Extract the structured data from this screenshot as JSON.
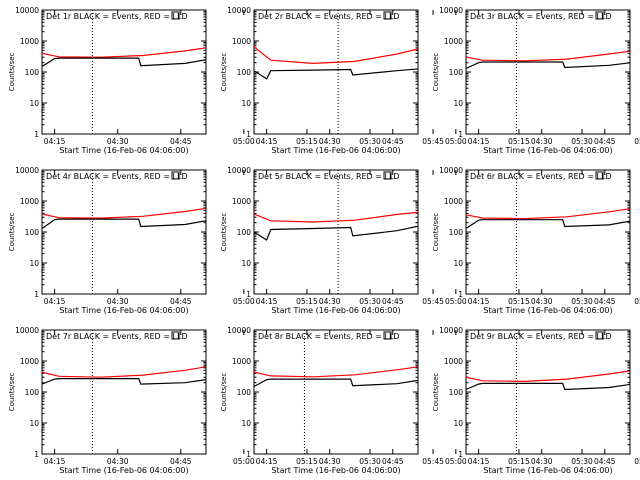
{
  "colors": {
    "events": "#000000",
    "lld": "#ff0000",
    "axes": "#000000",
    "background": "#ffffff"
  },
  "chart_data": [
    {
      "type": "line",
      "title": "Det 1r BLACK = Events, RED = LLD",
      "xlabel": "Start Time (16-Feb-06 04:06:00)",
      "ylabel": "Counts/sec",
      "xlim_min": [
        6,
        45
      ],
      "ylim": [
        1,
        10000
      ],
      "yscale": "log",
      "xticks_min": [
        9,
        24,
        39,
        54,
        69,
        84,
        99
      ],
      "xtick_labels": [
        "04:15",
        "04:30",
        "04:45",
        "05:00",
        "05:15",
        "05:30",
        "05:45"
      ],
      "yticks": [
        1,
        10,
        100,
        1000,
        10000
      ],
      "ytick_labels": [
        "1",
        "10",
        "100",
        "1000",
        "10000"
      ],
      "dotted_lines_min": [
        18,
        89,
        103
      ],
      "grid": false,
      "series": [
        {
          "name": "LLD",
          "x": [
            6,
            10,
            20,
            30,
            40,
            45,
            50,
            60,
            70,
            80,
            90,
            97,
            104
          ],
          "y": [
            400,
            310,
            300,
            340,
            480,
            600,
            650,
            520,
            380,
            300,
            320,
            460,
            650
          ]
        },
        {
          "name": "Events",
          "x": [
            6,
            9,
            10,
            20,
            29,
            29.5,
            40,
            49,
            50,
            60,
            70,
            71,
            80,
            84.5,
            85,
            90,
            97,
            104
          ],
          "y": [
            150,
            270,
            280,
            280,
            280,
            160,
            190,
            310,
            270,
            280,
            280,
            260,
            260,
            260,
            100,
            130,
            170,
            260
          ]
        }
      ]
    },
    {
      "type": "line",
      "title": "Det 2r BLACK = Events, RED = LLD",
      "xlabel": "Start Time (16-Feb-06 04:06:00)",
      "ylabel": "Counts/sec",
      "xlim_min": [
        6,
        45
      ],
      "ylim": [
        1,
        10000
      ],
      "yscale": "log",
      "xticks_min": [
        9,
        24,
        39,
        54,
        69,
        84,
        99
      ],
      "xtick_labels": [
        "04:15",
        "04:30",
        "04:45",
        "05:00",
        "05:15",
        "05:30",
        "05:45"
      ],
      "yticks": [
        1,
        10,
        100,
        1000,
        10000
      ],
      "ytick_labels": [
        "1",
        "10",
        "100",
        "1000",
        "10000"
      ],
      "dotted_lines_min": [
        26,
        89,
        103
      ],
      "grid": false,
      "series": [
        {
          "name": "LLD",
          "x": [
            6,
            10,
            20,
            30,
            40,
            50,
            55,
            60,
            70,
            80,
            90,
            97,
            104
          ],
          "y": [
            650,
            240,
            190,
            220,
            380,
            800,
            900,
            700,
            350,
            220,
            240,
            400,
            700
          ]
        },
        {
          "name": "Events",
          "x": [
            6,
            9,
            10,
            20,
            29,
            29.5,
            40,
            49,
            50,
            60,
            70,
            71,
            80,
            84.5,
            85,
            90,
            97,
            104
          ],
          "y": [
            110,
            60,
            110,
            115,
            120,
            80,
            110,
            140,
            110,
            115,
            120,
            115,
            110,
            115,
            50,
            80,
            200,
            400
          ]
        }
      ]
    },
    {
      "type": "line",
      "title": "Det 3r BLACK = Events, RED = LLD",
      "xlabel": "Start Time (16-Feb-06 04:06:00)",
      "ylabel": "Counts/sec",
      "xlim_min": [
        6,
        45
      ],
      "ylim": [
        1,
        10000
      ],
      "yscale": "log",
      "xticks_min": [
        9,
        24,
        39,
        54,
        69,
        84,
        99
      ],
      "xtick_labels": [
        "04:15",
        "04:30",
        "04:45",
        "05:00",
        "05:15",
        "05:30",
        "05:45"
      ],
      "yticks": [
        1,
        10,
        100,
        1000,
        10000
      ],
      "ytick_labels": [
        "1",
        "10",
        "100",
        "1000",
        "10000"
      ],
      "dotted_lines_min": [
        18,
        89,
        103
      ],
      "grid": false,
      "series": [
        {
          "name": "LLD",
          "x": [
            6,
            10,
            20,
            30,
            40,
            45,
            50,
            60,
            70,
            80,
            90,
            97,
            104
          ],
          "y": [
            300,
            240,
            230,
            260,
            380,
            470,
            500,
            400,
            290,
            230,
            240,
            380,
            550
          ]
        },
        {
          "name": "Events",
          "x": [
            6,
            9,
            10,
            20,
            29,
            29.5,
            40,
            49,
            50,
            60,
            70,
            71,
            80,
            84.5,
            85,
            90,
            97,
            104
          ],
          "y": [
            130,
            200,
            210,
            210,
            210,
            140,
            165,
            230,
            200,
            210,
            210,
            200,
            190,
            200,
            90,
            110,
            140,
            210
          ]
        }
      ]
    },
    {
      "type": "line",
      "title": "Det 4r BLACK = Events, RED = LLD",
      "xlabel": "Start Time (16-Feb-06 04:06:00)",
      "ylabel": "Counts/sec",
      "xlim_min": [
        6,
        45
      ],
      "ylim": [
        1,
        10000
      ],
      "yscale": "log",
      "xticks_min": [
        9,
        24,
        39,
        54,
        69,
        84,
        99
      ],
      "xtick_labels": [
        "04:15",
        "04:30",
        "04:45",
        "05:00",
        "05:15",
        "05:30",
        "05:45"
      ],
      "yticks": [
        1,
        10,
        100,
        1000,
        10000
      ],
      "ytick_labels": [
        "1",
        "10",
        "100",
        "1000",
        "10000"
      ],
      "dotted_lines_min": [
        18,
        89,
        103
      ],
      "grid": false,
      "series": [
        {
          "name": "LLD",
          "x": [
            6,
            10,
            20,
            30,
            40,
            45,
            50,
            60,
            70,
            80,
            90,
            97,
            104
          ],
          "y": [
            380,
            290,
            280,
            320,
            460,
            580,
            620,
            500,
            360,
            280,
            300,
            440,
            620
          ]
        },
        {
          "name": "Events",
          "x": [
            6,
            9,
            10,
            20,
            29,
            29.5,
            40,
            49,
            50,
            60,
            70,
            71,
            80,
            84.5,
            85,
            90,
            97,
            104
          ],
          "y": [
            130,
            250,
            260,
            260,
            260,
            150,
            175,
            290,
            250,
            260,
            260,
            240,
            240,
            240,
            95,
            120,
            160,
            240
          ]
        }
      ]
    },
    {
      "type": "line",
      "title": "Det 5r BLACK = Events, RED = LLD",
      "xlabel": "Start Time (16-Feb-06 04:06:00)",
      "ylabel": "Counts/sec",
      "xlim_min": [
        6,
        45
      ],
      "ylim": [
        1,
        10000
      ],
      "yscale": "log",
      "xticks_min": [
        9,
        24,
        39,
        54,
        69,
        84,
        99
      ],
      "xtick_labels": [
        "04:15",
        "04:30",
        "04:45",
        "05:00",
        "05:15",
        "05:30",
        "05:45"
      ],
      "yticks": [
        1,
        10,
        100,
        1000,
        10000
      ],
      "ytick_labels": [
        "1",
        "10",
        "100",
        "1000",
        "10000"
      ],
      "dotted_lines_min": [
        26,
        89,
        103
      ],
      "grid": false,
      "series": [
        {
          "name": "LLD",
          "x": [
            6,
            10,
            20,
            30,
            40,
            50,
            55,
            60,
            70,
            80,
            90,
            97,
            104
          ],
          "y": [
            380,
            230,
            210,
            240,
            370,
            500,
            550,
            450,
            300,
            200,
            210,
            350,
            450
          ]
        },
        {
          "name": "Events",
          "x": [
            6,
            9,
            10,
            20,
            29,
            29.5,
            40,
            49,
            50,
            60,
            70,
            71,
            80,
            84.5,
            85,
            90,
            97,
            104
          ],
          "y": [
            100,
            55,
            120,
            130,
            140,
            75,
            110,
            200,
            130,
            140,
            150,
            140,
            130,
            140,
            45,
            75,
            110,
            160
          ]
        }
      ]
    },
    {
      "type": "line",
      "title": "Det 6r BLACK = Events, RED = LLD",
      "xlabel": "Start Time (16-Feb-06 04:06:00)",
      "ylabel": "Counts/sec",
      "xlim_min": [
        6,
        45
      ],
      "ylim": [
        1,
        10000
      ],
      "yscale": "log",
      "xticks_min": [
        9,
        24,
        39,
        54,
        69,
        84,
        99
      ],
      "xtick_labels": [
        "04:15",
        "04:30",
        "04:45",
        "05:00",
        "05:15",
        "05:30",
        "05:45"
      ],
      "yticks": [
        1,
        10,
        100,
        1000,
        10000
      ],
      "ytick_labels": [
        "1",
        "10",
        "100",
        "1000",
        "10000"
      ],
      "dotted_lines_min": [
        18,
        89,
        103
      ],
      "grid": false,
      "series": [
        {
          "name": "LLD",
          "x": [
            6,
            10,
            20,
            30,
            40,
            45,
            50,
            60,
            70,
            80,
            90,
            97,
            104
          ],
          "y": [
            360,
            280,
            270,
            310,
            450,
            560,
            600,
            490,
            350,
            270,
            290,
            430,
            600
          ]
        },
        {
          "name": "Events",
          "x": [
            6,
            9,
            10,
            20,
            29,
            29.5,
            40,
            49,
            50,
            60,
            70,
            71,
            80,
            84.5,
            85,
            90,
            97,
            104
          ],
          "y": [
            130,
            240,
            250,
            250,
            250,
            150,
            170,
            280,
            240,
            250,
            250,
            230,
            230,
            230,
            95,
            115,
            150,
            230
          ]
        }
      ]
    },
    {
      "type": "line",
      "title": "Det 7r BLACK = Events, RED = LLD",
      "xlabel": "Start Time (16-Feb-06 04:06:00)",
      "ylabel": "Counts/sec",
      "xlim_min": [
        6,
        45
      ],
      "ylim": [
        1,
        10000
      ],
      "yscale": "log",
      "xticks_min": [
        9,
        24,
        39,
        54,
        69,
        84,
        99
      ],
      "xtick_labels": [
        "04:15",
        "04:30",
        "04:45",
        "05:00",
        "05:15",
        "05:30",
        "05:45"
      ],
      "yticks": [
        1,
        10,
        100,
        1000,
        10000
      ],
      "ytick_labels": [
        "1",
        "10",
        "100",
        "1000",
        "10000"
      ],
      "dotted_lines_min": [
        18,
        89,
        103
      ],
      "grid": false,
      "series": [
        {
          "name": "LLD",
          "x": [
            6,
            10,
            20,
            30,
            40,
            45,
            50,
            60,
            70,
            80,
            90,
            97,
            104
          ],
          "y": [
            440,
            320,
            300,
            350,
            500,
            650,
            700,
            560,
            400,
            300,
            320,
            480,
            700
          ]
        },
        {
          "name": "Events",
          "x": [
            6,
            9,
            10,
            20,
            29,
            29.5,
            40,
            49,
            50,
            60,
            70,
            71,
            80,
            84.5,
            85,
            90,
            97,
            104
          ],
          "y": [
            180,
            260,
            270,
            270,
            270,
            180,
            200,
            300,
            270,
            270,
            270,
            260,
            260,
            260,
            120,
            150,
            200,
            300
          ]
        }
      ]
    },
    {
      "type": "line",
      "title": "Det 8r BLACK = Events, RED = LLD",
      "xlabel": "Start Time (16-Feb-06 04:06:00)",
      "ylabel": "Counts/sec",
      "xlim_min": [
        6,
        45
      ],
      "ylim": [
        1,
        10000
      ],
      "yscale": "log",
      "xticks_min": [
        9,
        24,
        39,
        54,
        69,
        84,
        99
      ],
      "xtick_labels": [
        "04:15",
        "04:30",
        "04:45",
        "05:00",
        "05:15",
        "05:30",
        "05:45"
      ],
      "yticks": [
        1,
        10,
        100,
        1000,
        10000
      ],
      "ytick_labels": [
        "1",
        "10",
        "100",
        "1000",
        "10000"
      ],
      "dotted_lines_min": [
        18,
        89,
        103
      ],
      "grid": false,
      "series": [
        {
          "name": "LLD",
          "x": [
            6,
            10,
            20,
            30,
            40,
            45,
            50,
            60,
            70,
            80,
            84,
            85,
            90,
            97,
            104
          ],
          "y": [
            440,
            330,
            310,
            360,
            520,
            650,
            700,
            550,
            400,
            320,
            350,
            250,
            400,
            550,
            700
          ]
        },
        {
          "name": "Events",
          "x": [
            6,
            9,
            10,
            20,
            29,
            29.5,
            40,
            49,
            50,
            60,
            70,
            71,
            80,
            84,
            84.5,
            85,
            86,
            90,
            97,
            104
          ],
          "y": [
            150,
            250,
            260,
            260,
            260,
            160,
            185,
            290,
            250,
            260,
            260,
            250,
            250,
            250,
            9,
            100,
            8,
            120,
            200,
            280
          ]
        }
      ]
    },
    {
      "type": "line",
      "title": "Det 9r BLACK = Events, RED = LLD",
      "xlabel": "Start Time (16-Feb-06 04:06:00)",
      "ylabel": "Counts/sec",
      "xlim_min": [
        6,
        45
      ],
      "ylim": [
        1,
        10000
      ],
      "yscale": "log",
      "xticks_min": [
        9,
        24,
        39,
        54,
        69,
        84,
        99
      ],
      "xtick_labels": [
        "04:15",
        "04:30",
        "04:45",
        "05:00",
        "05:15",
        "05:30",
        "05:45"
      ],
      "yticks": [
        1,
        10,
        100,
        1000,
        10000
      ],
      "ytick_labels": [
        "1",
        "10",
        "100",
        "1000",
        "10000"
      ],
      "dotted_lines_min": [
        18,
        89,
        103
      ],
      "grid": false,
      "series": [
        {
          "name": "LLD",
          "x": [
            6,
            10,
            20,
            30,
            40,
            45,
            50,
            60,
            70,
            80,
            90,
            97,
            104
          ],
          "y": [
            300,
            230,
            220,
            260,
            380,
            480,
            520,
            420,
            300,
            220,
            240,
            380,
            520
          ]
        },
        {
          "name": "Events",
          "x": [
            6,
            9,
            10,
            20,
            29,
            29.5,
            40,
            49,
            50,
            60,
            70,
            71,
            80,
            84.5,
            85,
            90,
            97,
            104
          ],
          "y": [
            120,
            180,
            190,
            190,
            190,
            120,
            140,
            210,
            180,
            190,
            190,
            180,
            170,
            180,
            80,
            100,
            130,
            190
          ]
        }
      ]
    }
  ]
}
